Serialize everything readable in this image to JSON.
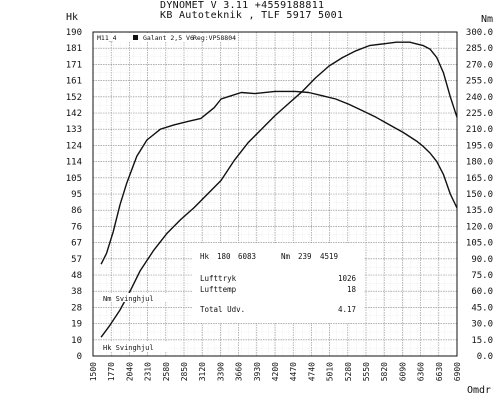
{
  "header": {
    "line1": "DYNOMET V 3.11 +4559188811",
    "line2": "KB Autoteknik , TLF 5917 5001"
  },
  "chart_data": {
    "type": "line",
    "left_axis_label": "Hk",
    "right_axis_label": "Nm",
    "x_axis_label": "Omdr",
    "x_ticks": [
      1500,
      1770,
      2040,
      2310,
      2580,
      2850,
      3120,
      3390,
      3660,
      3930,
      4200,
      4470,
      4740,
      5010,
      5280,
      5550,
      5820,
      6090,
      6360,
      6630,
      6900
    ],
    "y_left_ticks": [
      0,
      10,
      19,
      28,
      38,
      48,
      57,
      67,
      76,
      86,
      95,
      105,
      114,
      124,
      133,
      142,
      152,
      161,
      171,
      181,
      190
    ],
    "y_right_ticks": [
      "0.0",
      "15.0",
      "30.0",
      "45.0",
      "60.0",
      "75.0",
      "90.0",
      "105.0",
      "120.0",
      "135.0",
      "150.0",
      "165.0",
      "180.0",
      "195.0",
      "210.0",
      "225.0",
      "240.0",
      "255.0",
      "270.0",
      "285.0",
      "300.0"
    ],
    "xlim": [
      1500,
      6900
    ],
    "ylim_left": [
      0,
      190
    ],
    "ylim_right": [
      0,
      300
    ],
    "grid": true,
    "legend_top": {
      "run": "M11_4",
      "car": "Galant 2,5 V6",
      "reg": "Reg:VP58804"
    },
    "series": [
      {
        "name": "Nm Svinghjul",
        "axis": "right",
        "x": [
          1620,
          1700,
          1800,
          1900,
          2000,
          2150,
          2300,
          2500,
          2700,
          2900,
          3100,
          3300,
          3400,
          3500,
          3700,
          3900,
          4200,
          4500,
          4700,
          4900,
          5100,
          5300,
          5500,
          5700,
          5900,
          6100,
          6300,
          6400,
          6500,
          6600,
          6700,
          6800,
          6900
        ],
        "y": [
          85,
          95,
          115,
          140,
          160,
          185,
          200,
          210,
          214,
          217,
          220,
          230,
          238,
          240,
          244,
          243,
          245,
          245,
          244,
          241,
          238,
          233,
          227,
          221,
          214,
          207,
          199,
          194,
          188,
          180,
          168,
          150,
          137
        ]
      },
      {
        "name": "Hk Svinghjul",
        "axis": "left",
        "x": [
          1620,
          1750,
          1900,
          2050,
          2200,
          2400,
          2600,
          2800,
          3000,
          3200,
          3400,
          3600,
          3800,
          4000,
          4200,
          4400,
          4600,
          4800,
          5000,
          5200,
          5400,
          5600,
          5800,
          6000,
          6100,
          6200,
          6300,
          6400,
          6500,
          6600,
          6700,
          6800,
          6900
        ],
        "y": [
          11,
          18,
          27,
          38,
          50,
          62,
          72,
          80,
          87,
          95,
          103,
          115,
          125,
          133,
          141,
          148,
          155,
          163,
          170,
          175,
          179,
          182,
          183,
          184,
          184,
          184,
          183,
          182,
          180,
          175,
          166,
          152,
          140
        ]
      }
    ],
    "results": {
      "hk_label": "Hk",
      "hk_value": "180",
      "hk_rpm": "6083",
      "nm_label": "Nm",
      "nm_value": "239",
      "nm_rpm": "4519",
      "lufttryk_label": "Lufttryk",
      "lufttryk_value": "1026",
      "lufttemp_label": "Lufttemp",
      "lufttemp_value": "18",
      "total_label": "Total Udv.",
      "total_value": "4.17"
    }
  }
}
